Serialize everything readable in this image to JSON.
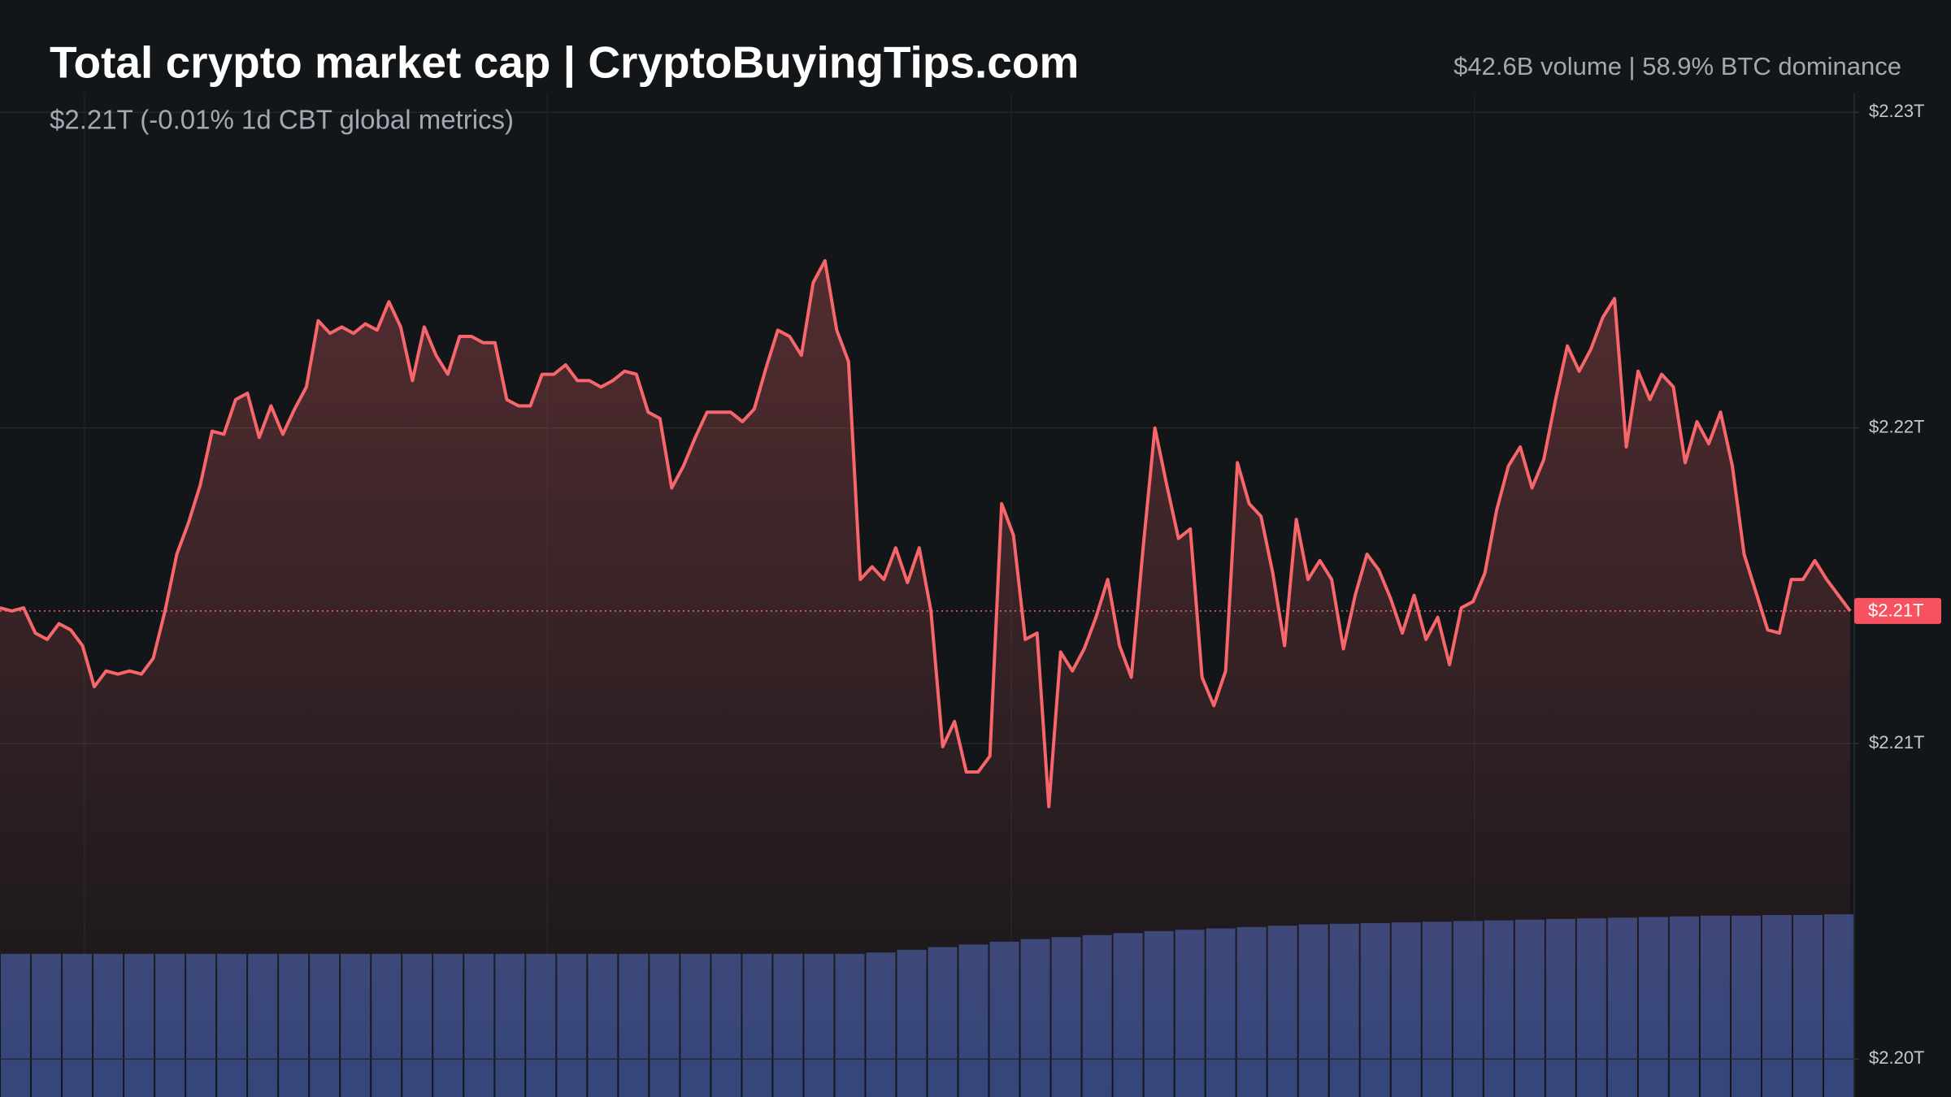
{
  "chart_data": {
    "type": "line",
    "title": "Total crypto market cap | CryptoBuyingTips.com",
    "subtitle": "$2.21T (-0.01% 1d CBT global metrics)",
    "stats": "$42.6B volume | 58.9% BTC dominance",
    "ylim": [
      2.1988,
      2.2306
    ],
    "yticks": [
      {
        "value": 2.23,
        "label": "$2.23T"
      },
      {
        "value": 2.22,
        "label": "$2.22T"
      },
      {
        "value": 2.21,
        "label": "$2.21T"
      },
      {
        "value": 2.2,
        "label": "$2.20T"
      }
    ],
    "grid": true,
    "last_price": {
      "value": 2.2142,
      "label": "$2.21T"
    },
    "series": [
      {
        "name": "Market cap",
        "color": "#f7666a",
        "values": [
          2.2143,
          2.2142,
          2.2143,
          2.2135,
          2.2133,
          2.2138,
          2.2136,
          2.2131,
          2.2118,
          2.2123,
          2.2122,
          2.2123,
          2.2122,
          2.2127,
          2.2142,
          2.216,
          2.217,
          2.2182,
          2.2199,
          2.2198,
          2.2209,
          2.2211,
          2.2197,
          2.2207,
          2.2198,
          2.2206,
          2.2213,
          2.2234,
          2.223,
          2.2232,
          2.223,
          2.2233,
          2.2231,
          2.224,
          2.2232,
          2.2215,
          2.2232,
          2.2223,
          2.2217,
          2.2229,
          2.2229,
          2.2227,
          2.2227,
          2.2209,
          2.2207,
          2.2207,
          2.2217,
          2.2217,
          2.222,
          2.2215,
          2.2215,
          2.2213,
          2.2215,
          2.2218,
          2.2217,
          2.2205,
          2.2203,
          2.2181,
          2.2188,
          2.2197,
          2.2205,
          2.2205,
          2.2205,
          2.2202,
          2.2206,
          2.2219,
          2.2231,
          2.2229,
          2.2223,
          2.2246,
          2.2253,
          2.2231,
          2.2221,
          2.2152,
          2.2156,
          2.2152,
          2.2162,
          2.2151,
          2.2162,
          2.2142,
          2.2099,
          2.2107,
          2.2091,
          2.2091,
          2.2096,
          2.2176,
          2.2166,
          2.2133,
          2.2135,
          2.208,
          2.2129,
          2.2123,
          2.213,
          2.214,
          2.2152,
          2.2131,
          2.2121,
          2.2162,
          2.22,
          2.2182,
          2.2165,
          2.2168,
          2.2121,
          2.2112,
          2.2123,
          2.2189,
          2.2176,
          2.2172,
          2.2154,
          2.2131,
          2.2171,
          2.2152,
          2.2158,
          2.2152,
          2.213,
          2.2147,
          2.216,
          2.2155,
          2.2146,
          2.2135,
          2.2147,
          2.2133,
          2.214,
          2.2125,
          2.2143,
          2.2145,
          2.2154,
          2.2174,
          2.2188,
          2.2194,
          2.2181,
          2.219,
          2.2209,
          2.2226,
          2.2218,
          2.2225,
          2.2235,
          2.2241,
          2.2194,
          2.2218,
          2.2209,
          2.2217,
          2.2213,
          2.2189,
          2.2202,
          2.2195,
          2.2205,
          2.2188,
          2.216,
          2.2148,
          2.2136,
          2.2135,
          2.2152,
          2.2152,
          2.2158,
          2.2152,
          2.2147,
          2.2142
        ]
      }
    ],
    "volume": {
      "type": "bar",
      "color": "#34467a",
      "y2lim": [
        0,
        150
      ],
      "values": [
        21.4,
        21.4,
        21.4,
        21.4,
        21.4,
        21.4,
        21.4,
        21.4,
        21.4,
        21.4,
        21.4,
        21.4,
        21.4,
        21.4,
        21.4,
        21.4,
        21.4,
        21.4,
        21.4,
        21.4,
        21.4,
        21.4,
        21.4,
        21.4,
        21.4,
        21.4,
        21.4,
        21.4,
        21.6,
        22.0,
        22.4,
        22.8,
        23.2,
        23.6,
        23.9,
        24.2,
        24.5,
        24.8,
        25.0,
        25.2,
        25.4,
        25.6,
        25.8,
        25.9,
        26.0,
        26.1,
        26.2,
        26.3,
        26.4,
        26.5,
        26.6,
        26.7,
        26.8,
        26.9,
        27.0,
        27.1,
        27.1,
        27.2,
        27.2,
        27.3
      ]
    }
  }
}
